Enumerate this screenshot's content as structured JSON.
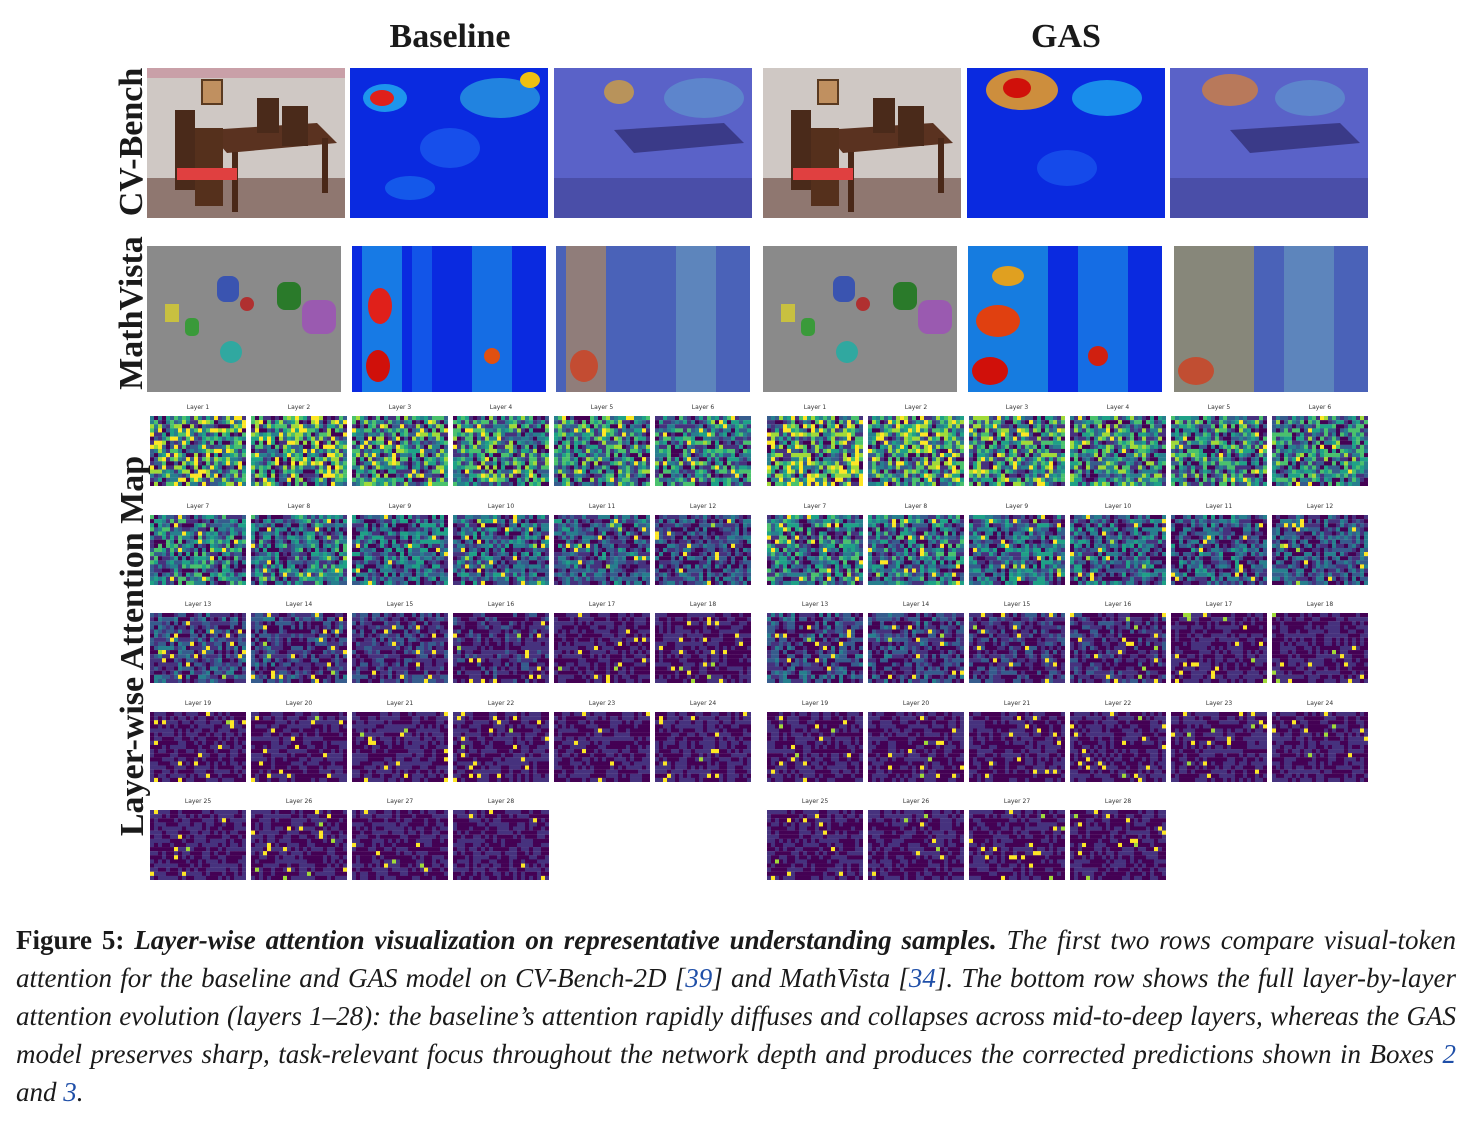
{
  "columns": {
    "baseline": "Baseline",
    "gas": "GAS"
  },
  "rows": {
    "cvbench": "CV-Bench",
    "mathvista": "MathVista",
    "layerwise": "Layer-wise Attention Map"
  },
  "layers": [
    "Layer 1",
    "Layer 2",
    "Layer 3",
    "Layer 4",
    "Layer 5",
    "Layer 6",
    "Layer 7",
    "Layer 8",
    "Layer 9",
    "Layer 10",
    "Layer 11",
    "Layer 12",
    "Layer 13",
    "Layer 14",
    "Layer 15",
    "Layer 16",
    "Layer 17",
    "Layer 18",
    "Layer 19",
    "Layer 20",
    "Layer 21",
    "Layer 22",
    "Layer 23",
    "Layer 24",
    "Layer 25",
    "Layer 26",
    "Layer 27",
    "Layer 28"
  ],
  "caption": {
    "figure_label": "Figure 5:",
    "bold_title": "Layer-wise attention visualization on representative understanding samples.",
    "text_1": "The first two rows compare visual-token attention for the baseline and GAS model on CV-Bench-2D [",
    "ref_1": "39",
    "text_2": "] and MathVista [",
    "ref_2": "34",
    "text_3": "]. The bottom row shows the full layer-by-layer attention evolution (layers 1–28): the baseline’s attention rapidly diffuses and collapses across mid-to-deep layers, whereas the GAS model preserves sharp, task-relevant focus throughout the network depth and produces the corrected predictions shown in Boxes ",
    "ref_3": "2",
    "text_4": " and ",
    "ref_4": "3",
    "text_5": "."
  },
  "colors": {
    "jet_low": "#0a1fd6",
    "jet_high": "#d0100a",
    "viridis_low": "#440154",
    "viridis_high": "#fde725",
    "link": "#1f4fa8"
  }
}
